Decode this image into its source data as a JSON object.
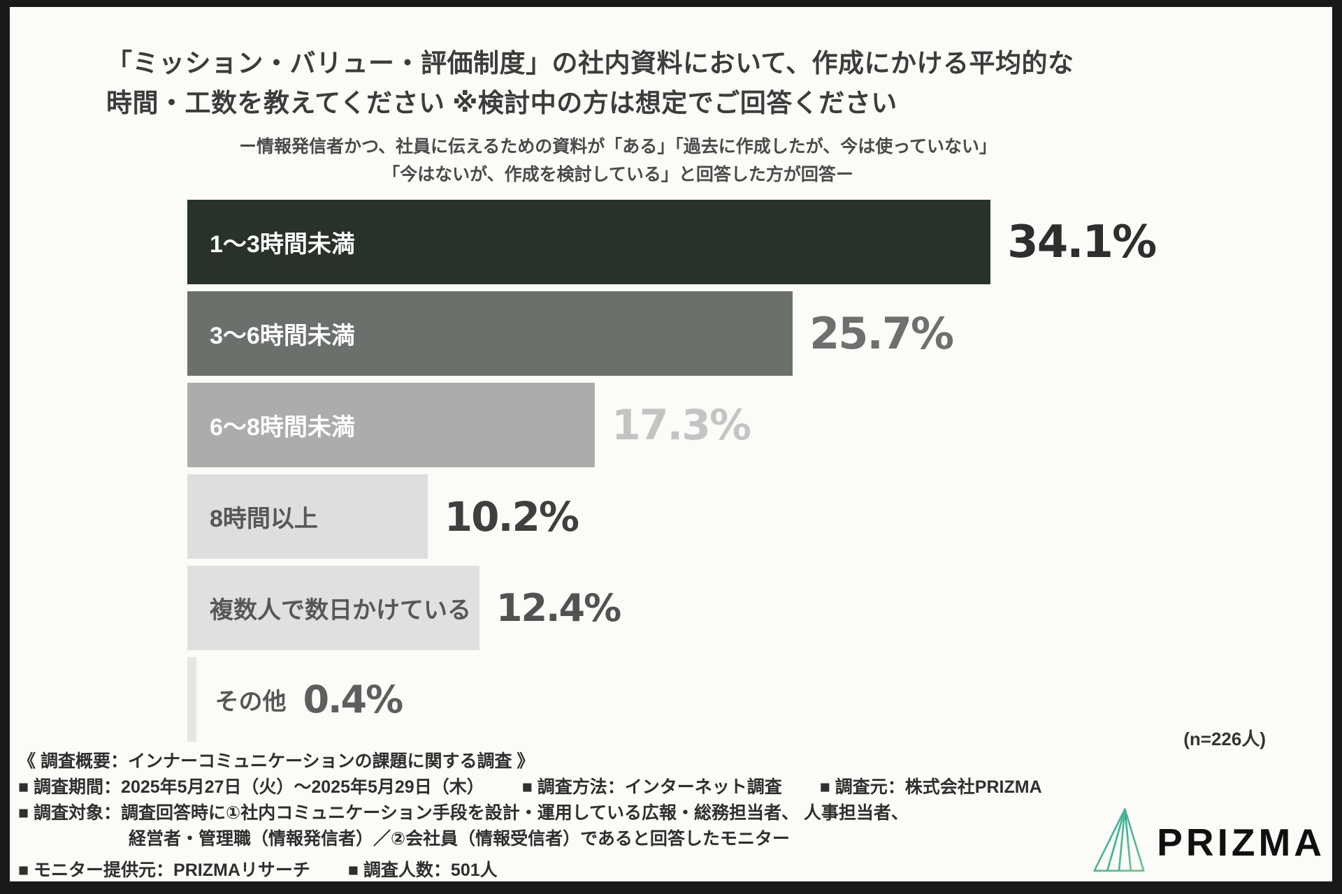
{
  "frame": {
    "border_color": "#191919",
    "canvas_background": "#FBFBF8"
  },
  "header": {
    "title_line1": "「ミッション・バリュー・評価制度」の社内資料において、作成にかける平均的な",
    "title_line2": "時間・工数を教えてください ※検討中の方は想定でご回答ください",
    "subtitle_line1": "ー情報発信者かつ、社員に伝えるための資料が「ある」「過去に作成したが、今は使っていない」",
    "subtitle_line2": "「今はないが、作成を検討している」と回答した方が回答ー"
  },
  "chart_data": {
    "type": "bar",
    "orientation": "horizontal",
    "value_unit": "%",
    "title": "「ミッション・バリュー・評価制度」の社内資料において、作成にかける平均的な時間・工数を教えてください ※検討中の方は想定でご回答ください",
    "categories": [
      "1〜3時間未満",
      "3〜6時間未満",
      "6〜8時間未満",
      "8時間以上",
      "複数人で数日かけている",
      "その他"
    ],
    "values": [
      34.1,
      25.7,
      17.3,
      10.2,
      12.4,
      0.4
    ],
    "xlim": [
      0,
      34.1
    ],
    "grid": false,
    "legend": "none",
    "n_label": "(n=226人)",
    "rows": [
      {
        "label": "1〜3時間未満",
        "value": 34.1,
        "pct": "34.1%",
        "bar_color": "#29322A",
        "label_color": "#FFFFFF",
        "pct_color": "#2E2E2E",
        "pct_size": 64,
        "label_inside": true
      },
      {
        "label": "3〜6時間未満",
        "value": 25.7,
        "pct": "25.7%",
        "bar_color": "#6C706C",
        "label_color": "#FFFFFF",
        "pct_color": "#6F6F6F",
        "pct_size": 62,
        "label_inside": true
      },
      {
        "label": "6〜8時間未満",
        "value": 17.3,
        "pct": "17.3%",
        "bar_color": "#ACACAC",
        "label_color": "#FFFFFF",
        "pct_color": "#C4C4C4",
        "pct_size": 60,
        "label_inside": true
      },
      {
        "label": "8時間以上",
        "value": 10.2,
        "pct": "10.2%",
        "bar_color": "#DEDEDE",
        "label_color": "#575757",
        "pct_color": "#3F3F3F",
        "pct_size": 58,
        "label_inside": true
      },
      {
        "label": "複数人で数日かけている",
        "value": 12.4,
        "pct": "12.4%",
        "bar_color": "#E0E0E0",
        "label_color": "#575757",
        "pct_color": "#525252",
        "pct_size": 54,
        "label_inside": true
      },
      {
        "label": "その他",
        "value": 0.4,
        "pct": "0.4%",
        "bar_color": "#E6E6E6",
        "label_color": "#575757",
        "pct_color": "#5E5E5E",
        "pct_size": 54,
        "label_inside": false
      }
    ]
  },
  "footer": {
    "overview": "《 調査概要：インナーコミュニケーションの課題に関する調査 》",
    "line2": [
      "■ 調査期間：2025年5月27日（火）〜2025年5月29日（木）",
      "■ 調査方法：インターネット調査",
      "■ 調査元：株式会社PRIZMA"
    ],
    "line3": "■ 調査対象：調査回答時に①社内コミュニケーション手段を設計・運用している広報・総務担当者、 人事担当者、",
    "line4": "経営者・管理職（情報発信者）／②会社員（情報受信者）であると回答したモニター",
    "line5": [
      "■ モニター提供元：PRIZMAリサーチ",
      "■ 調査人数：501人"
    ]
  },
  "logo": {
    "text": "PRIZMA",
    "icon": "prism-triangle-icon",
    "gradient_start": "#2FA9A5",
    "gradient_end": "#6CC489"
  }
}
